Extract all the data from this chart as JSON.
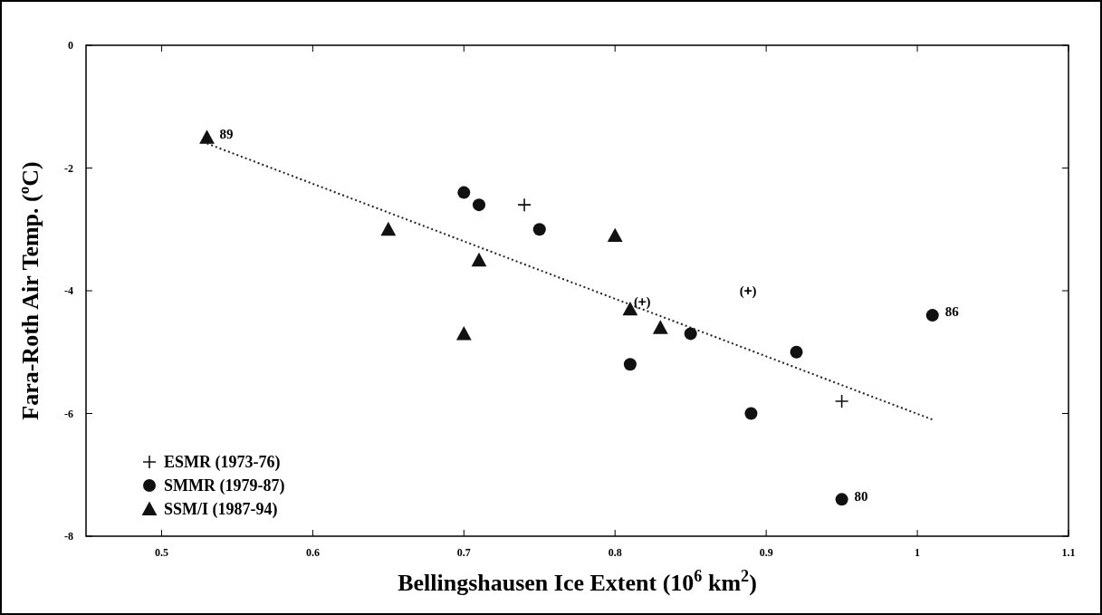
{
  "chart_data": {
    "type": "scatter",
    "xlabel": "Bellingshausen Ice Extent (10$^{6}$ km$^{2}$)",
    "ylabel": "Fara-Roth Air Temp. (ºC)",
    "xlim": [
      0.45,
      1.1
    ],
    "xticks": [
      0.5,
      0.6,
      0.7,
      0.8,
      0.9,
      1.0,
      1.1
    ],
    "ylim": [
      -8,
      0
    ],
    "yticks": [
      -8,
      -6,
      -4,
      -2,
      0
    ],
    "legend": "bottom left",
    "grid": false,
    "series": [
      {
        "name": "ESMR (1973-76)",
        "color": "#111111",
        "marker": "cross",
        "x": [
          0.74,
          0.95
        ],
        "values": [
          -2.6,
          -5.8
        ]
      },
      {
        "name": "SMMR (1979-87)",
        "color": "#111111",
        "marker": "circle",
        "x": [
          0.7,
          0.71,
          0.75,
          0.85,
          0.81,
          0.92,
          0.89,
          0.95,
          1.01
        ],
        "values": [
          -2.4,
          -2.6,
          -3.0,
          -4.7,
          -5.2,
          -5.0,
          -6.0,
          -7.4,
          -4.4
        ]
      },
      {
        "name": "SSM/I (1987-94)",
        "color": "#111111",
        "marker": "triangle",
        "x": [
          0.53,
          0.65,
          0.71,
          0.7,
          0.8,
          0.81,
          0.83
        ],
        "values": [
          -1.5,
          -3.0,
          -3.5,
          -4.7,
          -3.1,
          -4.3,
          -4.6
        ]
      },
      {
        "color": "#111111",
        "marker": "cross",
        "x": [
          0.888,
          0.818
        ],
        "values": [
          -4.0,
          -4.18
        ]
      },
      {
        "type": "line",
        "color": "#222222",
        "line_style": "dotted",
        "marker": "none",
        "x": [
          0.53,
          1.01
        ],
        "values": [
          -1.6,
          -6.1
        ]
      }
    ],
    "annotations": [
      {
        "text": "89",
        "x": 0.53,
        "y": -1.5
      },
      {
        "text": "86",
        "x": 1.01,
        "y": -4.4
      },
      {
        "text": "80",
        "x": 0.95,
        "y": -7.4
      },
      {
        "text": "(+)",
        "x": 0.888,
        "y": -4.0
      },
      {
        "text": "(+)",
        "x": 0.818,
        "y": -4.18
      }
    ]
  }
}
